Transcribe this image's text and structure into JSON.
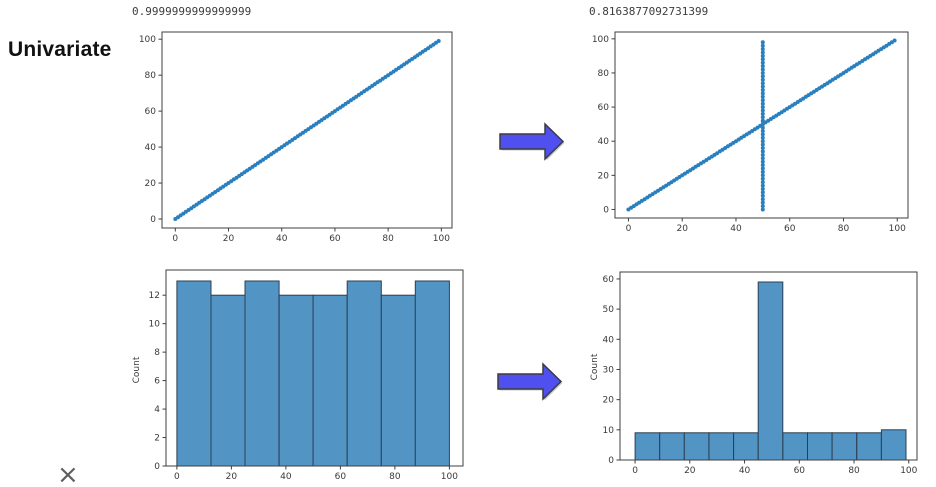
{
  "labels": {
    "row_label": "Univariate",
    "close_mark": "×"
  },
  "colors": {
    "background": "#ffffff",
    "axis": "#3f3f3f",
    "tick_text": "#3a3a3a",
    "scatter_dot": "#2a7fbf",
    "bar_fill": "#5295c5",
    "bar_edge": "#2b3f52",
    "arrow_fill": "#5050f0",
    "arrow_edge": "#3c3c3c"
  },
  "icons": {
    "arrow_top": "block-arrow-right-icon",
    "arrow_bottom": "block-arrow-right-icon",
    "close": "x-mark-icon"
  },
  "chart_data": [
    {
      "id": "scatter_before",
      "type": "scatter",
      "title": "0.9999999999999999",
      "xlabel": "",
      "ylabel": "",
      "points": {
        "relation": "y = x",
        "x_start": 0,
        "x_end": 99,
        "step": 1,
        "n_points": 100
      },
      "xticks": [
        0,
        20,
        40,
        60,
        80,
        100
      ],
      "yticks": [
        0,
        20,
        40,
        60,
        80,
        100
      ],
      "xlim": [
        -5,
        104
      ],
      "ylim": [
        -5,
        104
      ],
      "grid": false,
      "legend": false
    },
    {
      "id": "scatter_after",
      "type": "scatter",
      "title": "0.8163877092731399",
      "xlabel": "",
      "ylabel": "",
      "points": {
        "relation": "y = x",
        "x_start": 0,
        "x_end": 99,
        "step": 1,
        "n_points": 100
      },
      "anomaly_column": {
        "x": 50,
        "y_start": 0,
        "y_end": 99,
        "step": 2
      },
      "xticks": [
        0,
        20,
        40,
        60,
        80,
        100
      ],
      "yticks": [
        0,
        20,
        40,
        60,
        80,
        100
      ],
      "xlim": [
        -5,
        104
      ],
      "ylim": [
        -5,
        104
      ],
      "grid": false,
      "legend": false
    },
    {
      "id": "hist_before",
      "type": "bar",
      "title": "",
      "xlabel": "",
      "ylabel": "Count",
      "bin_edges": [
        0,
        12.5,
        25,
        37.5,
        50,
        62.5,
        75,
        87.5,
        100
      ],
      "counts": [
        13,
        12,
        13,
        12,
        12,
        13,
        12,
        13
      ],
      "xticks": [
        0,
        20,
        40,
        60,
        80,
        100
      ],
      "yticks": [
        0,
        2,
        4,
        6,
        8,
        10,
        12
      ],
      "xlim": [
        -4,
        105
      ],
      "ylim": [
        0,
        13.77
      ],
      "grid": false,
      "legend": false
    },
    {
      "id": "hist_after",
      "type": "bar",
      "title": "",
      "xlabel": "",
      "ylabel": "Count",
      "bin_edges": [
        0,
        9,
        18,
        27,
        36,
        45,
        54,
        63,
        72,
        81,
        90,
        99
      ],
      "counts": [
        9,
        9,
        9,
        9,
        9,
        59,
        9,
        9,
        9,
        9,
        10
      ],
      "xticks": [
        0,
        20,
        40,
        60,
        80,
        100
      ],
      "yticks": [
        0,
        10,
        20,
        30,
        40,
        50,
        60
      ],
      "xlim": [
        -5.5,
        103
      ],
      "ylim": [
        0,
        62.3
      ],
      "grid": false,
      "legend": false
    }
  ]
}
